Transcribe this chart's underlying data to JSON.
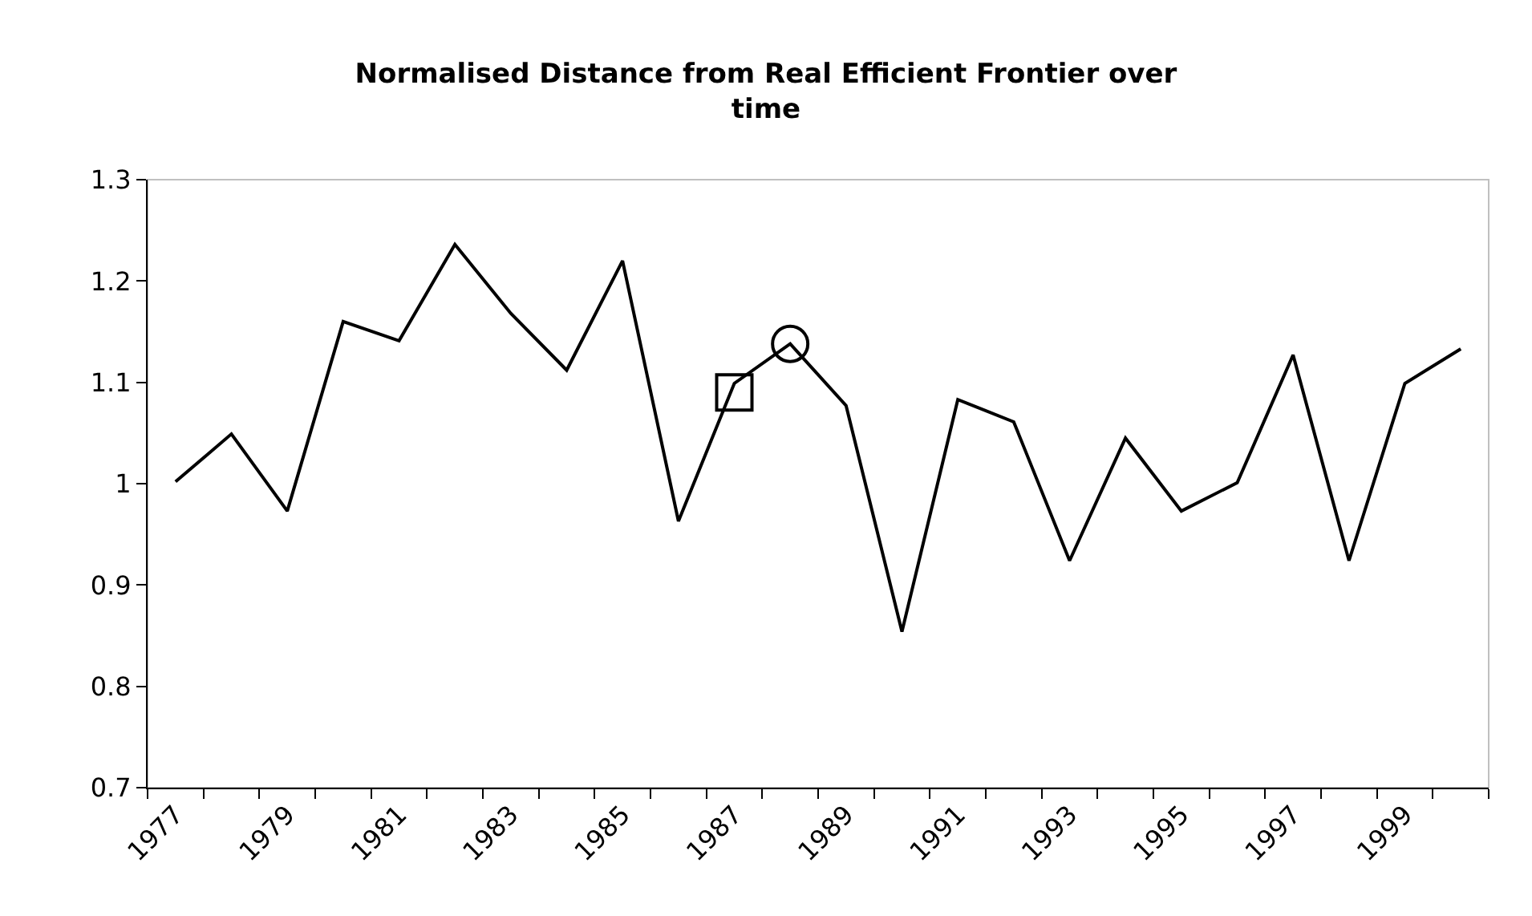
{
  "chart_data": {
    "type": "line",
    "title": "Normalised Distance from Real Efficient Frontier over time",
    "categories": [
      "1977",
      null,
      "1979",
      null,
      "1981",
      null,
      "1983",
      null,
      "1985",
      null,
      "1987",
      null,
      "1989",
      null,
      "1991",
      null,
      "1993",
      null,
      "1995",
      null,
      "1997",
      null,
      "1999",
      null
    ],
    "series": [
      {
        "color": "#000000",
        "values": [
          1.002,
          1.049,
          0.973,
          1.16,
          1.141,
          1.236,
          1.168,
          1.112,
          1.22,
          0.963,
          1.099,
          1.138,
          1.077,
          0.854,
          1.083,
          1.061,
          0.924,
          1.045,
          0.973,
          1.001,
          1.127,
          0.924,
          1.099,
          1.133
        ],
        "marker": "none",
        "line_style": "solid"
      },
      {
        "type": "scatter",
        "color": "#000000",
        "values": [
          null,
          null,
          null,
          null,
          null,
          null,
          null,
          null,
          null,
          null,
          1.09,
          null,
          null,
          null,
          null,
          null,
          null,
          null,
          null,
          null,
          null,
          null,
          null,
          null
        ],
        "marker": "square"
      },
      {
        "type": "scatter",
        "color": "#000000",
        "values": [
          null,
          null,
          null,
          null,
          null,
          null,
          null,
          null,
          null,
          null,
          null,
          1.138,
          null,
          null,
          null,
          null,
          null,
          null,
          null,
          null,
          null,
          null,
          null,
          null
        ],
        "marker": "circle"
      }
    ],
    "ylim": [
      0.7,
      1.3
    ],
    "yticks": [
      0.7,
      0.8,
      0.9,
      1,
      1.1,
      1.2,
      1.3
    ],
    "grid": false,
    "legend": false
  }
}
